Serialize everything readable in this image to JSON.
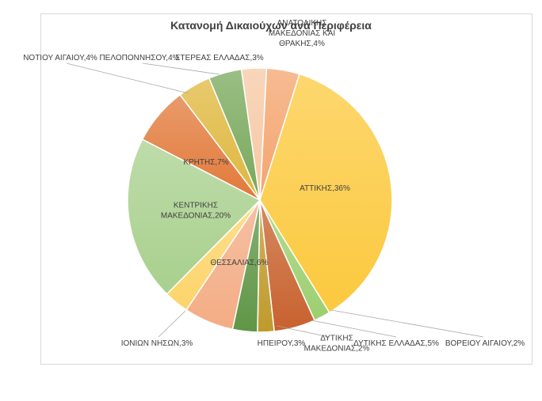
{
  "chart_data": {
    "type": "pie",
    "title": "Κατανομή Δικαιούχων ανά Περιφέρεια",
    "slices": [
      {
        "label": "ΑΝΑΤΟΛΙΚΗΣ ΜΑΚΕΔΟΝΙΑΣ ΚΑΙ ΘΡΑΚΗΣ",
        "value": 4,
        "text": "ΑΝΑΤΟΛΙΚΗΣ ΜΑΚΕΔΟΝΙΑΣ ΚΑΙ ΘΡΑΚΗΣ,4%",
        "color": "#f4a46e"
      },
      {
        "label": "ΑΤΤΙΚΗΣ",
        "value": 36,
        "text": "ΑΤΤΙΚΗΣ,36%",
        "color": "#fcc93e"
      },
      {
        "label": "ΒΟΡΕΙΟΥ ΑΙΓΑΙΟΥ",
        "value": 2,
        "text": "ΒΟΡΕΙΟΥ ΑΙΓΑΙΟΥ,2%",
        "color": "#9ccf70"
      },
      {
        "label": "ΔΥΤΙΚΗΣ ΕΛΛΑΔΑΣ",
        "value": 5,
        "text": "ΔΥΤΙΚΗΣ ΕΛΛΑΔΑΣ,5%",
        "color": "#c8612e"
      },
      {
        "label": "ΔΥΤΙΚΗΣ ΜΑΚΕΔΟΝΙΑΣ",
        "value": 2,
        "text": "ΔΥΤΙΚΗΣ ΜΑΚΕΔΟΝΙΑΣ,2%",
        "color": "#bf9a2c"
      },
      {
        "label": "ΗΠΕΙΡΟΥ",
        "value": 3,
        "text": "ΗΠΕΙΡΟΥ,3%",
        "color": "#5f9646"
      },
      {
        "label": "ΘΕΣΣΑΛΙΑΣ",
        "value": 6,
        "text": "ΘΕΣΣΑΛΙΑΣ,6%",
        "color": "#f3ac84"
      },
      {
        "label": "ΙΟΝΙΩΝ ΝΗΣΩΝ",
        "value": 3,
        "text": "ΙΟΝΙΩΝ ΝΗΣΩΝ,3%",
        "color": "#fdd46a"
      },
      {
        "label": "ΚΕΝΤΡΙΚΗΣ ΜΑΚΕΔΟΝΙΑΣ",
        "value": 20,
        "text": "ΚΕΝΤΡΙΚΗΣ ΜΑΚΕΔΟΝΙΑΣ,20%",
        "color": "#a8d08d"
      },
      {
        "label": "ΚΡΗΤΗΣ",
        "value": 7,
        "text": "ΚΡΗΤΗΣ,7%",
        "color": "#e2793a"
      },
      {
        "label": "ΝΟΤΙΟΥ ΑΙΓΑΙΟΥ",
        "value": 4,
        "text": "ΝΟΤΙΟΥ ΑΙΓΑΙΟΥ,4%",
        "color": "#dfb73e"
      },
      {
        "label": "ΠΕΛΟΠΟΝΝΗΣΟΥ",
        "value": 4,
        "text": "ΠΕΛΟΠΟΝΝΗΣΟΥ,4%",
        "color": "#78a85b"
      },
      {
        "label": "ΣΤΕΡΕΑΣ ΕΛΛΑΔΑΣ",
        "value": 3,
        "text": "ΣΤΕΡΕΑΣ ΕΛΛΑΔΑΣ,3%",
        "color": "#f6c8a4"
      }
    ]
  }
}
